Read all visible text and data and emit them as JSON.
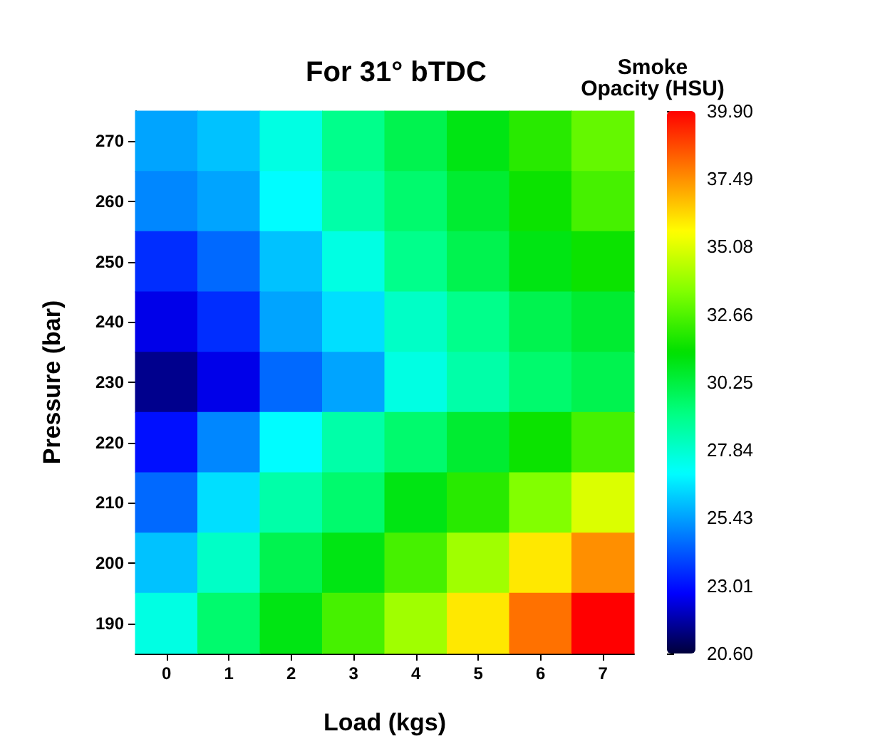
{
  "chart_data": {
    "type": "heatmap",
    "title": "For 31° bTDC",
    "xlabel": "Load (kgs)",
    "ylabel": "Pressure (bar)",
    "clabel": "Smoke\nOpacity (HSU)",
    "categories": [
      "0",
      "1",
      "2",
      "3",
      "4",
      "5",
      "6",
      "7"
    ],
    "y_categories": [
      "270",
      "260",
      "250",
      "240",
      "230",
      "220",
      "210",
      "200",
      "190"
    ],
    "cells": [
      [
        25.5,
        26,
        27.5,
        29,
        30,
        31,
        32,
        33
      ],
      [
        25,
        25.5,
        27,
        28.5,
        29.5,
        30.5,
        31.5,
        32.5
      ],
      [
        23.5,
        24.5,
        26,
        27.5,
        29,
        30,
        31,
        31.5
      ],
      [
        22.5,
        23.5,
        25.5,
        26.5,
        28,
        29,
        30,
        30.5
      ],
      [
        21.5,
        22.5,
        24.5,
        25.5,
        27.5,
        28.5,
        29.5,
        30
      ],
      [
        23,
        25,
        27,
        28.5,
        29.5,
        30.5,
        31.5,
        32.5
      ],
      [
        24.5,
        26.5,
        28.5,
        29.5,
        31,
        32,
        33.5,
        35
      ],
      [
        26,
        28,
        30,
        31,
        32.5,
        34,
        36,
        37.5
      ],
      [
        27.5,
        29.5,
        31,
        32.5,
        34,
        36,
        38,
        39.9
      ]
    ],
    "clim": [
      20.6,
      39.9
    ],
    "cticks": [
      {
        "value": 20.6,
        "label": "20.60"
      },
      23.01,
      25.43,
      27.84,
      30.25,
      32.66,
      35.08,
      37.49,
      {
        "value": 39.9,
        "label": "39.90"
      }
    ]
  }
}
